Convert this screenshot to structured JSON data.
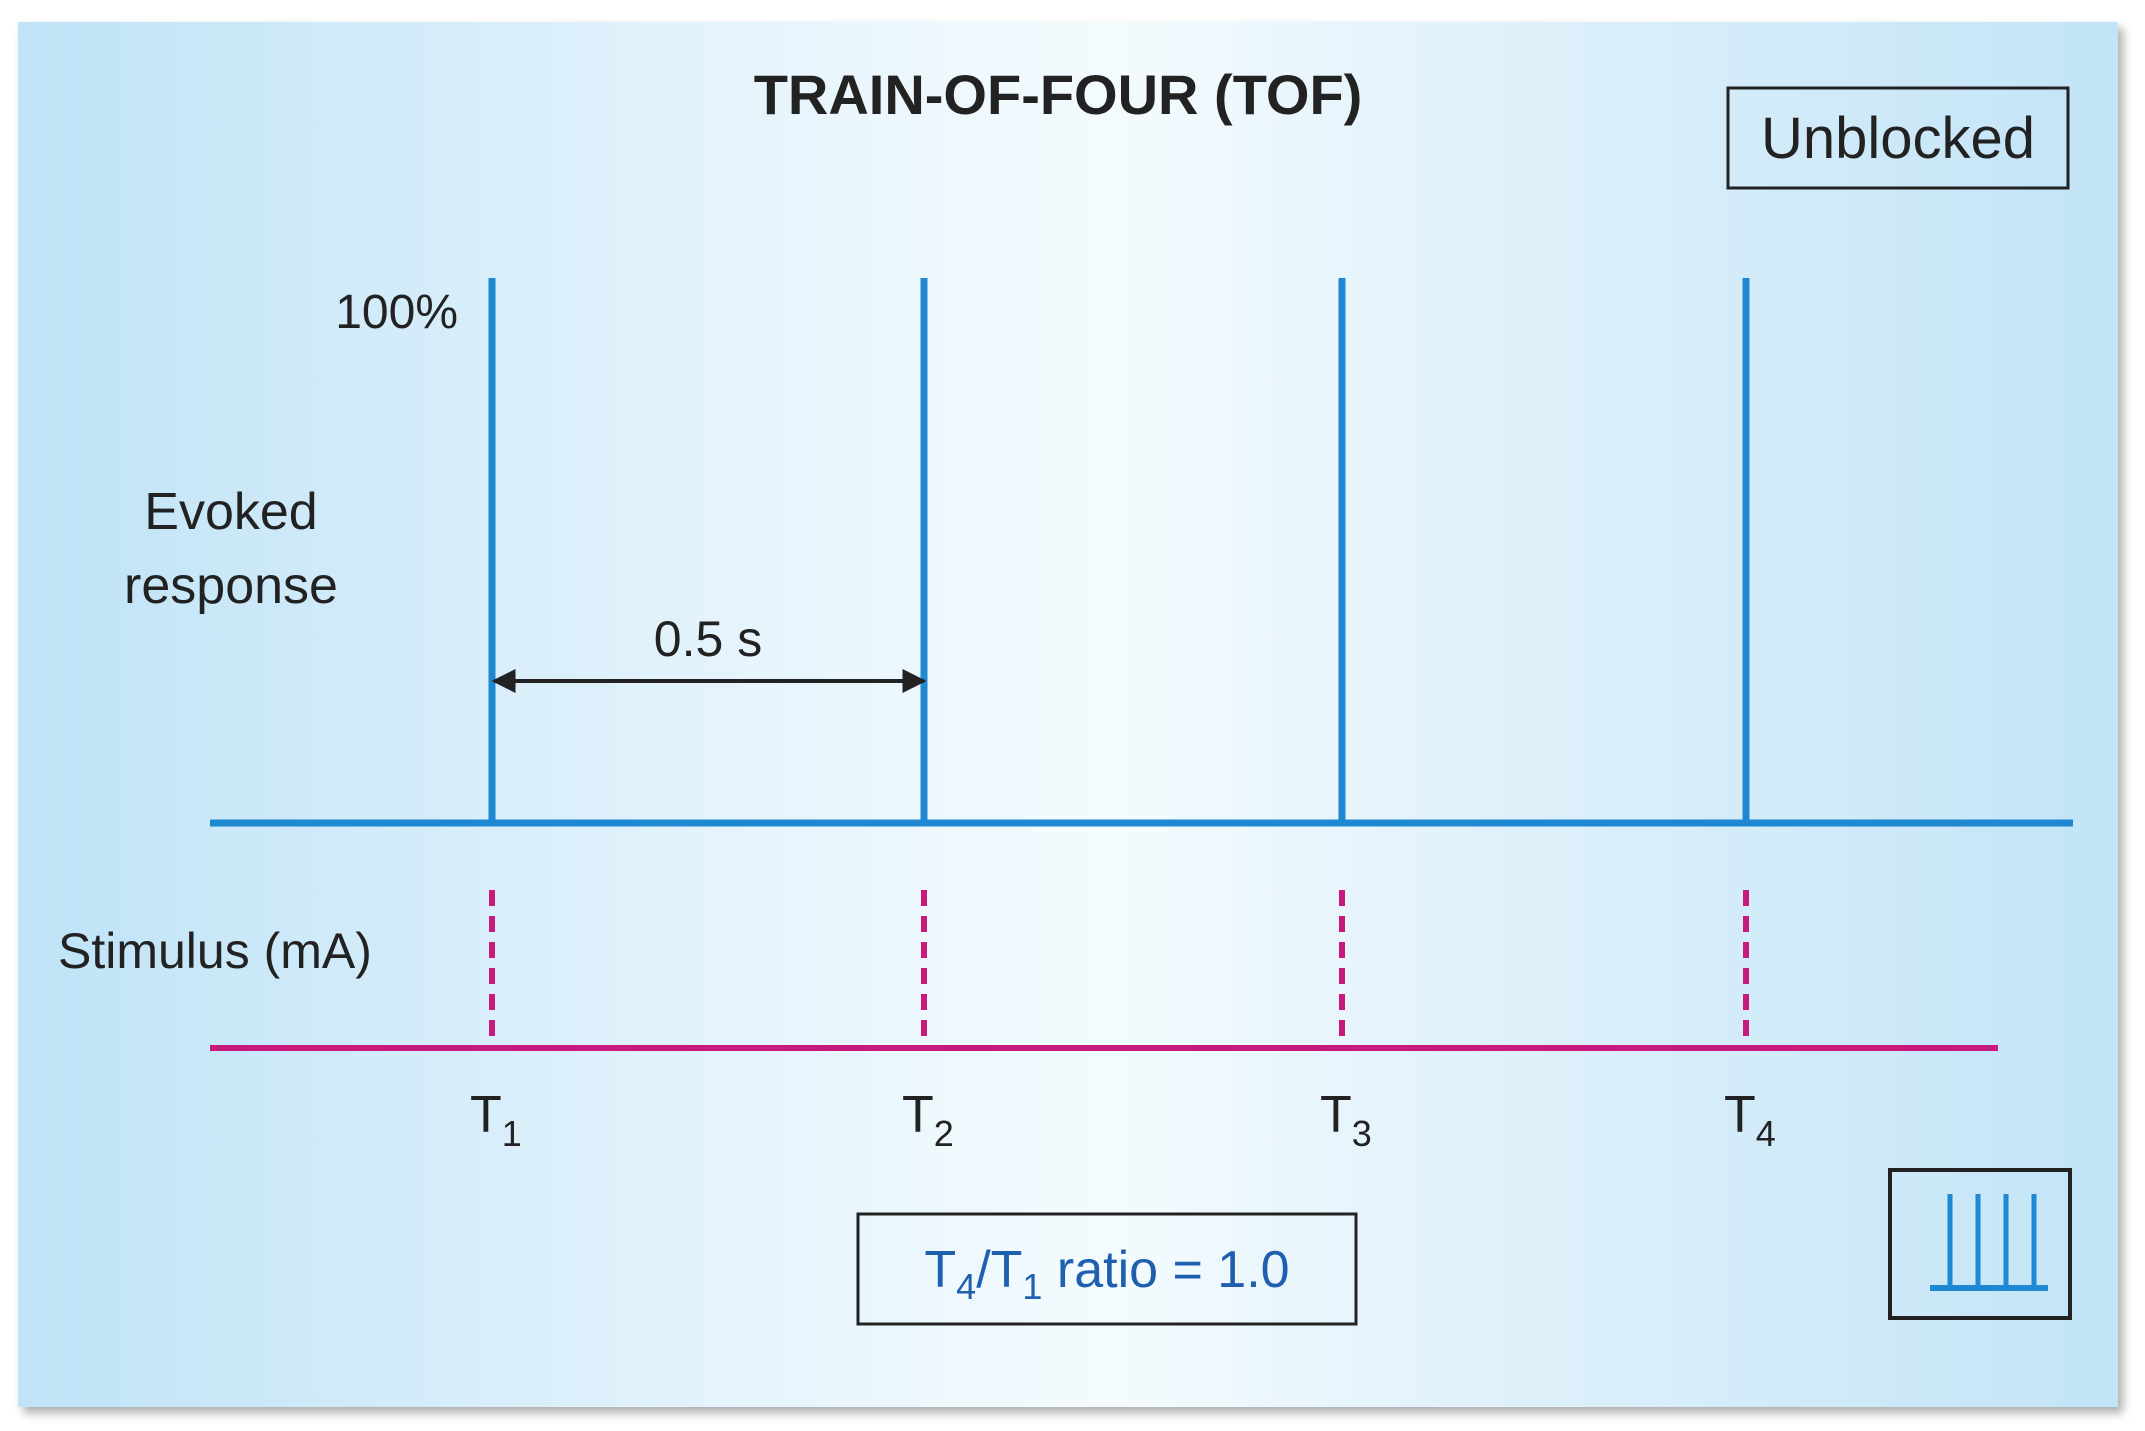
{
  "title": "TRAIN-OF-FOUR (TOF)",
  "state_label": "Unblocked",
  "y_top_label": "100%",
  "response_label": {
    "line1": "Evoked",
    "line2": "response"
  },
  "interval_label": "0.5 s",
  "stimulus_label": "Stimulus (mA)",
  "stimuli": [
    {
      "base": "T",
      "sub": "1"
    },
    {
      "base": "T",
      "sub": "2"
    },
    {
      "base": "T",
      "sub": "3"
    },
    {
      "base": "T",
      "sub": "4"
    }
  ],
  "twitch_response_percent": [
    100,
    100,
    100,
    100
  ],
  "ratio": {
    "num_base": "T",
    "num_sub": "4",
    "slash": "/",
    "den_base": "T",
    "den_sub": "1",
    "rest": " ratio = 1.0"
  },
  "colors": {
    "response": "#1e88d2",
    "stimulus": "#c8197d",
    "ratio_text": "#1e5fae",
    "text": "#222222",
    "box_border": "#222222",
    "icon_bars": "#1e88d2"
  },
  "icon": "four-equal-twitch-bars-icon"
}
